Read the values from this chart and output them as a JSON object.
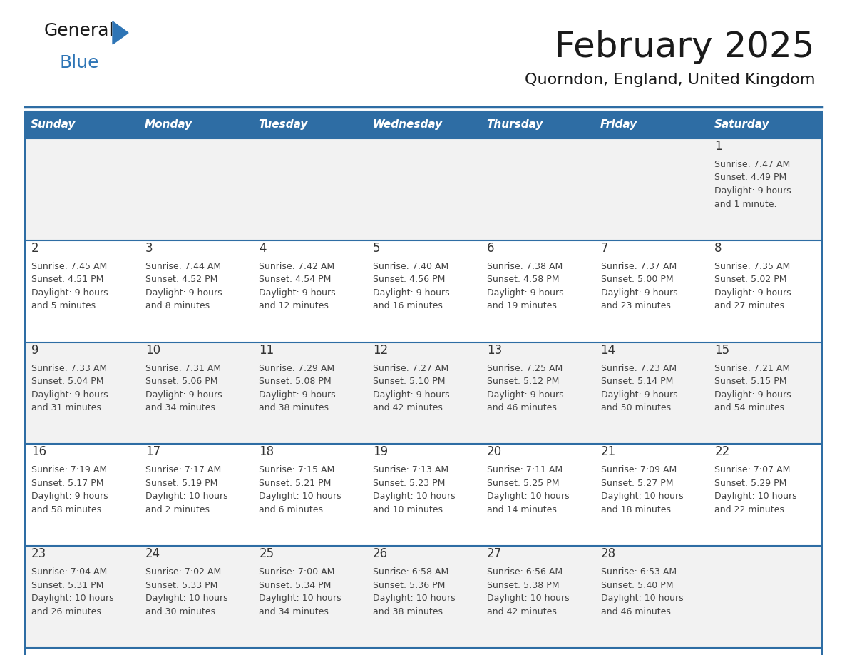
{
  "title": "February 2025",
  "subtitle": "Quorndon, England, United Kingdom",
  "header_bg": "#2E6DA4",
  "header_text_color": "#FFFFFF",
  "days_of_week": [
    "Sunday",
    "Monday",
    "Tuesday",
    "Wednesday",
    "Thursday",
    "Friday",
    "Saturday"
  ],
  "row_bg_odd": "#F2F2F2",
  "row_bg_even": "#FFFFFF",
  "border_color": "#2E6DA4",
  "text_color": "#444444",
  "day_num_color": "#333333",
  "calendar": [
    [
      {
        "day": "",
        "info": ""
      },
      {
        "day": "",
        "info": ""
      },
      {
        "day": "",
        "info": ""
      },
      {
        "day": "",
        "info": ""
      },
      {
        "day": "",
        "info": ""
      },
      {
        "day": "",
        "info": ""
      },
      {
        "day": "1",
        "info": "Sunrise: 7:47 AM\nSunset: 4:49 PM\nDaylight: 9 hours\nand 1 minute."
      }
    ],
    [
      {
        "day": "2",
        "info": "Sunrise: 7:45 AM\nSunset: 4:51 PM\nDaylight: 9 hours\nand 5 minutes."
      },
      {
        "day": "3",
        "info": "Sunrise: 7:44 AM\nSunset: 4:52 PM\nDaylight: 9 hours\nand 8 minutes."
      },
      {
        "day": "4",
        "info": "Sunrise: 7:42 AM\nSunset: 4:54 PM\nDaylight: 9 hours\nand 12 minutes."
      },
      {
        "day": "5",
        "info": "Sunrise: 7:40 AM\nSunset: 4:56 PM\nDaylight: 9 hours\nand 16 minutes."
      },
      {
        "day": "6",
        "info": "Sunrise: 7:38 AM\nSunset: 4:58 PM\nDaylight: 9 hours\nand 19 minutes."
      },
      {
        "day": "7",
        "info": "Sunrise: 7:37 AM\nSunset: 5:00 PM\nDaylight: 9 hours\nand 23 minutes."
      },
      {
        "day": "8",
        "info": "Sunrise: 7:35 AM\nSunset: 5:02 PM\nDaylight: 9 hours\nand 27 minutes."
      }
    ],
    [
      {
        "day": "9",
        "info": "Sunrise: 7:33 AM\nSunset: 5:04 PM\nDaylight: 9 hours\nand 31 minutes."
      },
      {
        "day": "10",
        "info": "Sunrise: 7:31 AM\nSunset: 5:06 PM\nDaylight: 9 hours\nand 34 minutes."
      },
      {
        "day": "11",
        "info": "Sunrise: 7:29 AM\nSunset: 5:08 PM\nDaylight: 9 hours\nand 38 minutes."
      },
      {
        "day": "12",
        "info": "Sunrise: 7:27 AM\nSunset: 5:10 PM\nDaylight: 9 hours\nand 42 minutes."
      },
      {
        "day": "13",
        "info": "Sunrise: 7:25 AM\nSunset: 5:12 PM\nDaylight: 9 hours\nand 46 minutes."
      },
      {
        "day": "14",
        "info": "Sunrise: 7:23 AM\nSunset: 5:14 PM\nDaylight: 9 hours\nand 50 minutes."
      },
      {
        "day": "15",
        "info": "Sunrise: 7:21 AM\nSunset: 5:15 PM\nDaylight: 9 hours\nand 54 minutes."
      }
    ],
    [
      {
        "day": "16",
        "info": "Sunrise: 7:19 AM\nSunset: 5:17 PM\nDaylight: 9 hours\nand 58 minutes."
      },
      {
        "day": "17",
        "info": "Sunrise: 7:17 AM\nSunset: 5:19 PM\nDaylight: 10 hours\nand 2 minutes."
      },
      {
        "day": "18",
        "info": "Sunrise: 7:15 AM\nSunset: 5:21 PM\nDaylight: 10 hours\nand 6 minutes."
      },
      {
        "day": "19",
        "info": "Sunrise: 7:13 AM\nSunset: 5:23 PM\nDaylight: 10 hours\nand 10 minutes."
      },
      {
        "day": "20",
        "info": "Sunrise: 7:11 AM\nSunset: 5:25 PM\nDaylight: 10 hours\nand 14 minutes."
      },
      {
        "day": "21",
        "info": "Sunrise: 7:09 AM\nSunset: 5:27 PM\nDaylight: 10 hours\nand 18 minutes."
      },
      {
        "day": "22",
        "info": "Sunrise: 7:07 AM\nSunset: 5:29 PM\nDaylight: 10 hours\nand 22 minutes."
      }
    ],
    [
      {
        "day": "23",
        "info": "Sunrise: 7:04 AM\nSunset: 5:31 PM\nDaylight: 10 hours\nand 26 minutes."
      },
      {
        "day": "24",
        "info": "Sunrise: 7:02 AM\nSunset: 5:33 PM\nDaylight: 10 hours\nand 30 minutes."
      },
      {
        "day": "25",
        "info": "Sunrise: 7:00 AM\nSunset: 5:34 PM\nDaylight: 10 hours\nand 34 minutes."
      },
      {
        "day": "26",
        "info": "Sunrise: 6:58 AM\nSunset: 5:36 PM\nDaylight: 10 hours\nand 38 minutes."
      },
      {
        "day": "27",
        "info": "Sunrise: 6:56 AM\nSunset: 5:38 PM\nDaylight: 10 hours\nand 42 minutes."
      },
      {
        "day": "28",
        "info": "Sunrise: 6:53 AM\nSunset: 5:40 PM\nDaylight: 10 hours\nand 46 minutes."
      },
      {
        "day": "",
        "info": ""
      }
    ]
  ],
  "logo_text1": "General",
  "logo_text2": "Blue",
  "logo_text1_color": "#1a1a1a",
  "logo_text2_color": "#2E75B6",
  "logo_triangle_color": "#2E75B6",
  "title_fontsize": 36,
  "subtitle_fontsize": 16,
  "header_fontsize": 11,
  "day_num_fontsize": 12,
  "info_fontsize": 9
}
